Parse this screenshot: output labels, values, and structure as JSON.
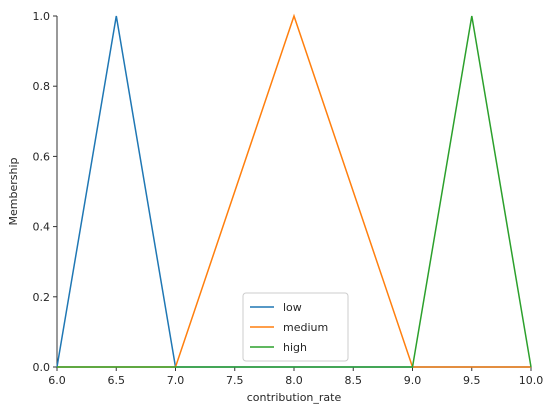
{
  "chart_data": {
    "type": "line",
    "xlabel": "contribution_rate",
    "ylabel": "Membership",
    "xlim": [
      6.0,
      10.0
    ],
    "ylim": [
      0.0,
      1.0
    ],
    "x_ticks": [
      "6.0",
      "6.5",
      "7.0",
      "7.5",
      "8.0",
      "8.5",
      "9.0",
      "9.5",
      "10.0"
    ],
    "y_ticks": [
      "0.0",
      "0.2",
      "0.4",
      "0.6",
      "0.8",
      "1.0"
    ],
    "grid": false,
    "legend_position": "bottom-center",
    "series": [
      {
        "name": "low",
        "color": "#1f77b4",
        "x": [
          6.0,
          6.5,
          7.0,
          10.0
        ],
        "y": [
          0,
          1,
          0,
          0
        ]
      },
      {
        "name": "medium",
        "color": "#ff7f0e",
        "x": [
          6.0,
          7.0,
          8.0,
          9.0,
          10.0
        ],
        "y": [
          0,
          0,
          1,
          0,
          0
        ]
      },
      {
        "name": "high",
        "color": "#2ca02c",
        "x": [
          6.0,
          9.0,
          9.5,
          10.0
        ],
        "y": [
          0,
          0,
          1,
          0
        ]
      }
    ]
  }
}
